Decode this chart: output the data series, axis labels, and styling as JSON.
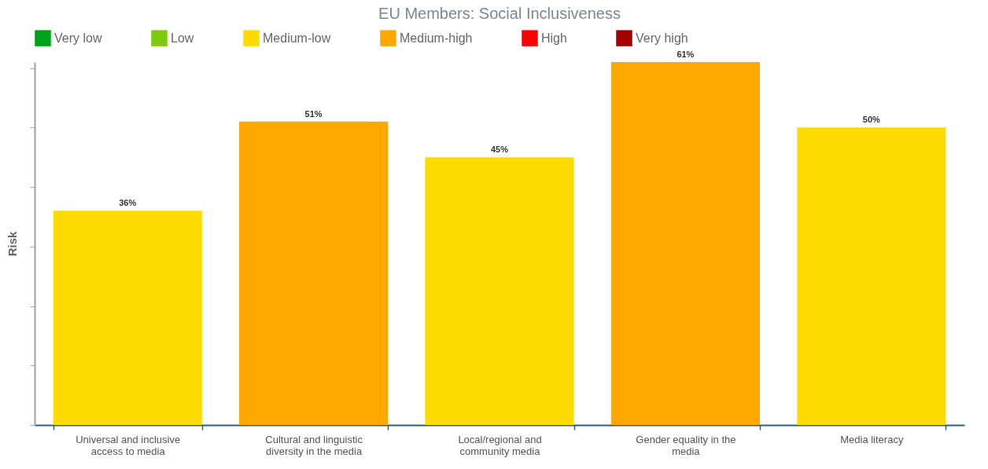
{
  "chart_data": {
    "type": "bar",
    "title": "EU Members: Social Inclusiveness",
    "ylabel": "Risk",
    "categories": [
      "Universal and inclusive access to media",
      "Cultural and linguistic diversity in the media",
      "Local/regional and community media",
      "Gender equality in the media",
      "Media literacy"
    ],
    "series": [
      {
        "name": "Very low",
        "color": "#00a317",
        "values": [
          null,
          null,
          null,
          null,
          null
        ]
      },
      {
        "name": "Low",
        "color": "#7dcb0c",
        "values": [
          null,
          null,
          null,
          null,
          null
        ]
      },
      {
        "name": "Medium-low",
        "color": "#fedb00",
        "values": [
          36,
          null,
          45,
          null,
          50
        ],
        "value_labels": [
          "36%",
          null,
          "45%",
          null,
          "50%"
        ]
      },
      {
        "name": "Medium-high",
        "color": "#ffa800",
        "values": [
          null,
          51,
          null,
          61,
          null
        ],
        "value_labels": [
          null,
          "51%",
          null,
          "61%",
          null
        ]
      },
      {
        "name": "High",
        "color": "#ff0000",
        "values": [
          null,
          null,
          null,
          null,
          null
        ]
      },
      {
        "name": "Very high",
        "color": "#a50000",
        "values": [
          null,
          null,
          null,
          null,
          null
        ]
      }
    ],
    "tick_labels": "x",
    "grid": false,
    "legend": "top"
  }
}
